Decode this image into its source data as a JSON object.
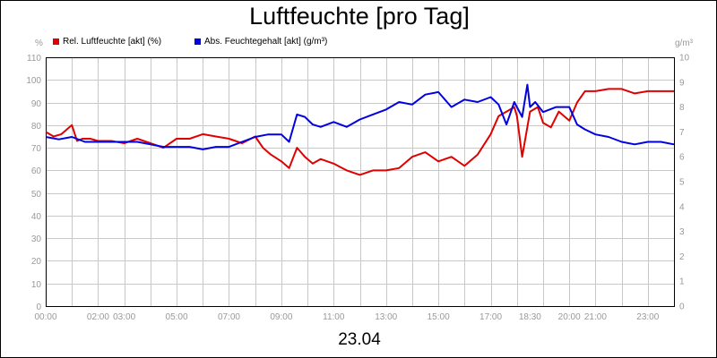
{
  "title": "Luftfeuchte [pro Tag]",
  "date_label": "23.04",
  "legend": [
    {
      "label": "Rel. Luftfeuchte [akt] (%)",
      "color": "#e00000"
    },
    {
      "label": "Abs. Feuchtegehalt [akt] (g/m³)",
      "color": "#0000e0"
    }
  ],
  "left_unit": "%",
  "right_unit": "g/m³",
  "chart_data": {
    "type": "line",
    "title": "Luftfeuchte [pro Tag]",
    "xlabel": "23.04",
    "x_ticks": [
      "00:00",
      "02:00",
      "03:00",
      "05:00",
      "07:00",
      "09:00",
      "11:00",
      "13:00",
      "15:00",
      "17:00",
      "18:30",
      "20:00",
      "21:00",
      "23:00"
    ],
    "x_tick_hours": [
      0,
      2,
      3,
      5,
      7,
      9,
      11,
      13,
      15,
      17,
      18.5,
      20,
      21,
      23
    ],
    "xlim": [
      0,
      24
    ],
    "y_left": {
      "label": "%",
      "lim": [
        0,
        110
      ],
      "ticks": [
        0,
        10,
        20,
        30,
        40,
        50,
        60,
        70,
        80,
        90,
        100,
        110
      ]
    },
    "y_right": {
      "label": "g/m³",
      "lim": [
        0,
        10
      ],
      "ticks": [
        0,
        1,
        2,
        3,
        4,
        5,
        6,
        7,
        8,
        9,
        10
      ]
    },
    "grid": true,
    "legend_position": "top-left",
    "series": [
      {
        "name": "Rel. Luftfeuchte [akt] (%)",
        "axis": "left",
        "color": "#e00000",
        "x": [
          0,
          0.3,
          0.6,
          1.0,
          1.2,
          1.4,
          1.7,
          2.0,
          2.5,
          3.0,
          3.5,
          4.0,
          4.5,
          5.0,
          5.5,
          6.0,
          6.5,
          7.0,
          7.5,
          8.0,
          8.3,
          8.6,
          9.0,
          9.3,
          9.6,
          9.9,
          10.2,
          10.5,
          11.0,
          11.5,
          12.0,
          12.5,
          13.0,
          13.5,
          14.0,
          14.5,
          15.0,
          15.5,
          16.0,
          16.5,
          17.0,
          17.3,
          17.6,
          17.9,
          18.0,
          18.2,
          18.5,
          18.8,
          19.0,
          19.3,
          19.6,
          20.0,
          20.3,
          20.6,
          21.0,
          21.5,
          22.0,
          22.5,
          23.0,
          23.5,
          24.0
        ],
        "y": [
          77,
          75,
          76,
          80,
          73,
          74,
          74,
          73,
          73,
          72,
          74,
          72,
          70,
          74,
          74,
          76,
          75,
          74,
          72,
          75,
          70,
          67,
          64,
          61,
          70,
          66,
          63,
          65,
          63,
          60,
          58,
          60,
          60,
          61,
          66,
          68,
          64,
          66,
          62,
          67,
          76,
          84,
          86,
          88,
          84,
          66,
          86,
          88,
          81,
          79,
          86,
          82,
          90,
          95,
          95,
          96,
          96,
          94,
          95,
          95,
          95
        ]
      },
      {
        "name": "Abs. Feuchtegehalt [akt] (g/m³)",
        "axis": "right",
        "color": "#0000e0",
        "x": [
          0,
          0.5,
          1.0,
          1.5,
          2.0,
          2.5,
          3.0,
          3.5,
          4.0,
          4.5,
          5.0,
          5.5,
          6.0,
          6.5,
          7.0,
          7.5,
          8.0,
          8.5,
          9.0,
          9.3,
          9.6,
          9.9,
          10.2,
          10.5,
          11.0,
          11.5,
          12.0,
          12.5,
          13.0,
          13.5,
          14.0,
          14.5,
          15.0,
          15.5,
          16.0,
          16.5,
          17.0,
          17.3,
          17.6,
          17.9,
          18.2,
          18.4,
          18.5,
          18.7,
          19.0,
          19.5,
          20.0,
          20.3,
          20.6,
          21.0,
          21.5,
          22.0,
          22.5,
          23.0,
          23.5,
          24.0
        ],
        "y": [
          6.8,
          6.7,
          6.8,
          6.6,
          6.6,
          6.6,
          6.6,
          6.6,
          6.5,
          6.4,
          6.4,
          6.4,
          6.3,
          6.4,
          6.4,
          6.6,
          6.8,
          6.9,
          6.9,
          6.6,
          7.7,
          7.6,
          7.3,
          7.2,
          7.4,
          7.2,
          7.5,
          7.7,
          7.9,
          8.2,
          8.1,
          8.5,
          8.6,
          8.0,
          8.3,
          8.2,
          8.4,
          8.1,
          7.3,
          8.2,
          7.6,
          8.9,
          8.0,
          8.2,
          7.8,
          8.0,
          8.0,
          7.3,
          7.1,
          6.9,
          6.8,
          6.6,
          6.5,
          6.6,
          6.6,
          6.5
        ]
      }
    ]
  }
}
